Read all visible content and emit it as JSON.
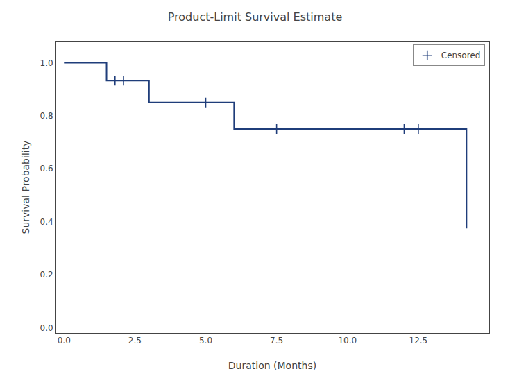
{
  "chart_data": {
    "type": "line",
    "title": "Product-Limit Survival Estimate",
    "xlabel": "Duration (Months)",
    "ylabel": "Survival Probability",
    "series": [
      {
        "type": "line",
        "color": "#1f3d7a",
        "x": [
          0.0,
          1.5,
          1.5,
          2.0,
          3.0,
          3.0,
          6.0,
          6.0,
          14.2,
          14.2
        ],
        "values": [
          1.0,
          1.0,
          0.933,
          0.933,
          0.933,
          0.85,
          0.85,
          0.75,
          0.75,
          0.375
        ]
      },
      {
        "name": "Censored",
        "type": "scatter",
        "marker": "+",
        "color": "#1f3d7a",
        "x": [
          1.8,
          2.1,
          5.0,
          7.5,
          12.0,
          12.5
        ],
        "values": [
          0.933,
          0.933,
          0.85,
          0.75,
          0.75,
          0.75
        ]
      }
    ],
    "xlim": [
      -0.3,
      15.0
    ],
    "ylim": [
      -0.02,
      1.08
    ],
    "xticks": [
      {
        "value": 0.0,
        "label": "0.0"
      },
      2.5,
      {
        "value": 5.0,
        "label": "5.0"
      },
      7.5,
      {
        "value": 10.0,
        "label": "10.0"
      },
      12.5
    ],
    "yticks": [
      {
        "value": 0.0,
        "label": "0.0"
      },
      0.2,
      0.4,
      0.6,
      0.8,
      {
        "value": 1.0,
        "label": "1.0"
      }
    ],
    "grid": false,
    "legend": "upper right"
  }
}
